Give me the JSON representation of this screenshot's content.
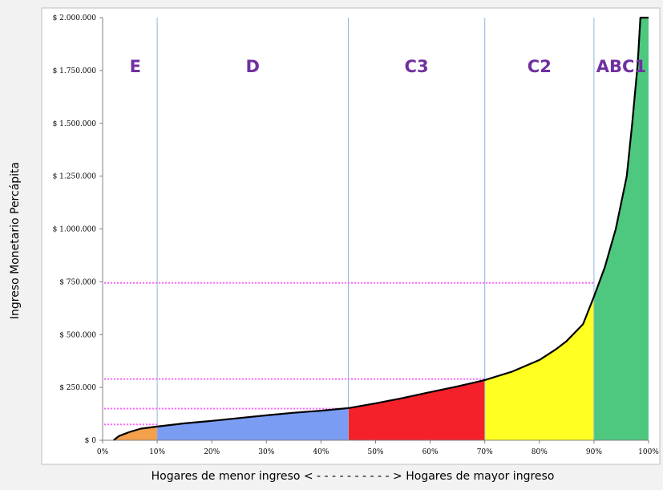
{
  "chart_data": {
    "type": "area",
    "title": "",
    "xlabel": "Hogares de menor ingreso < - - - - - - - - - - > Hogares de mayor ingreso",
    "ylabel": "Ingreso Monetario Percápita",
    "xlim": [
      0,
      100
    ],
    "ylim": [
      0,
      2000000
    ],
    "x_ticks": [
      0,
      10,
      20,
      30,
      40,
      50,
      60,
      70,
      80,
      90,
      100
    ],
    "x_tick_labels": [
      "0%",
      "10%",
      "20%",
      "30%",
      "40%",
      "50%",
      "60%",
      "70%",
      "80%",
      "90%",
      "100%"
    ],
    "y_ticks": [
      0,
      250000,
      500000,
      750000,
      1000000,
      1250000,
      1500000,
      1750000,
      2000000
    ],
    "y_tick_labels": [
      "$ 0",
      "$ 250.000",
      "$ 500.000",
      "$ 750.000",
      "$ 1.000.000",
      "$ 1.250.000",
      "$ 1.500.000",
      "$ 1.750.000",
      "$ 2.000.000"
    ],
    "grid": false,
    "vertical_dividers": [
      10,
      45,
      70,
      90
    ],
    "threshold_lines": [
      {
        "y": 75000,
        "x_end": 10
      },
      {
        "y": 150000,
        "x_end": 45
      },
      {
        "y": 290000,
        "x_end": 70
      },
      {
        "y": 745000,
        "x_end": 90
      }
    ],
    "threshold_color": "#ff66ff",
    "divider_color": "#8fb4d8",
    "segments": [
      {
        "name": "E",
        "x_start": 2,
        "x_end": 10,
        "color": "#f5a04a"
      },
      {
        "name": "D",
        "x_start": 10,
        "x_end": 45,
        "color": "#7b9cf3"
      },
      {
        "name": "C3",
        "x_start": 45,
        "x_end": 70,
        "color": "#f5212a"
      },
      {
        "name": "C2",
        "x_start": 70,
        "x_end": 90,
        "color": "#ffff22"
      },
      {
        "name": "ABC1",
        "x_start": 90,
        "x_end": 100,
        "color": "#4ec77f"
      }
    ],
    "label_color": "#7030a0",
    "curve": {
      "x": [
        2,
        3,
        5,
        7,
        10,
        15,
        20,
        25,
        30,
        35,
        40,
        45,
        50,
        55,
        60,
        65,
        70,
        75,
        80,
        83,
        85,
        88,
        90,
        91,
        92,
        94,
        96,
        97,
        98,
        98.5,
        99,
        100
      ],
      "y": [
        0,
        20000,
        40000,
        55000,
        65000,
        80000,
        92000,
        105000,
        118000,
        130000,
        140000,
        152000,
        175000,
        200000,
        228000,
        255000,
        285000,
        325000,
        380000,
        430000,
        470000,
        550000,
        680000,
        750000,
        820000,
        1000000,
        1250000,
        1500000,
        1780000,
        2000000,
        2000000,
        2000000
      ]
    },
    "curve_color": "#000000"
  }
}
